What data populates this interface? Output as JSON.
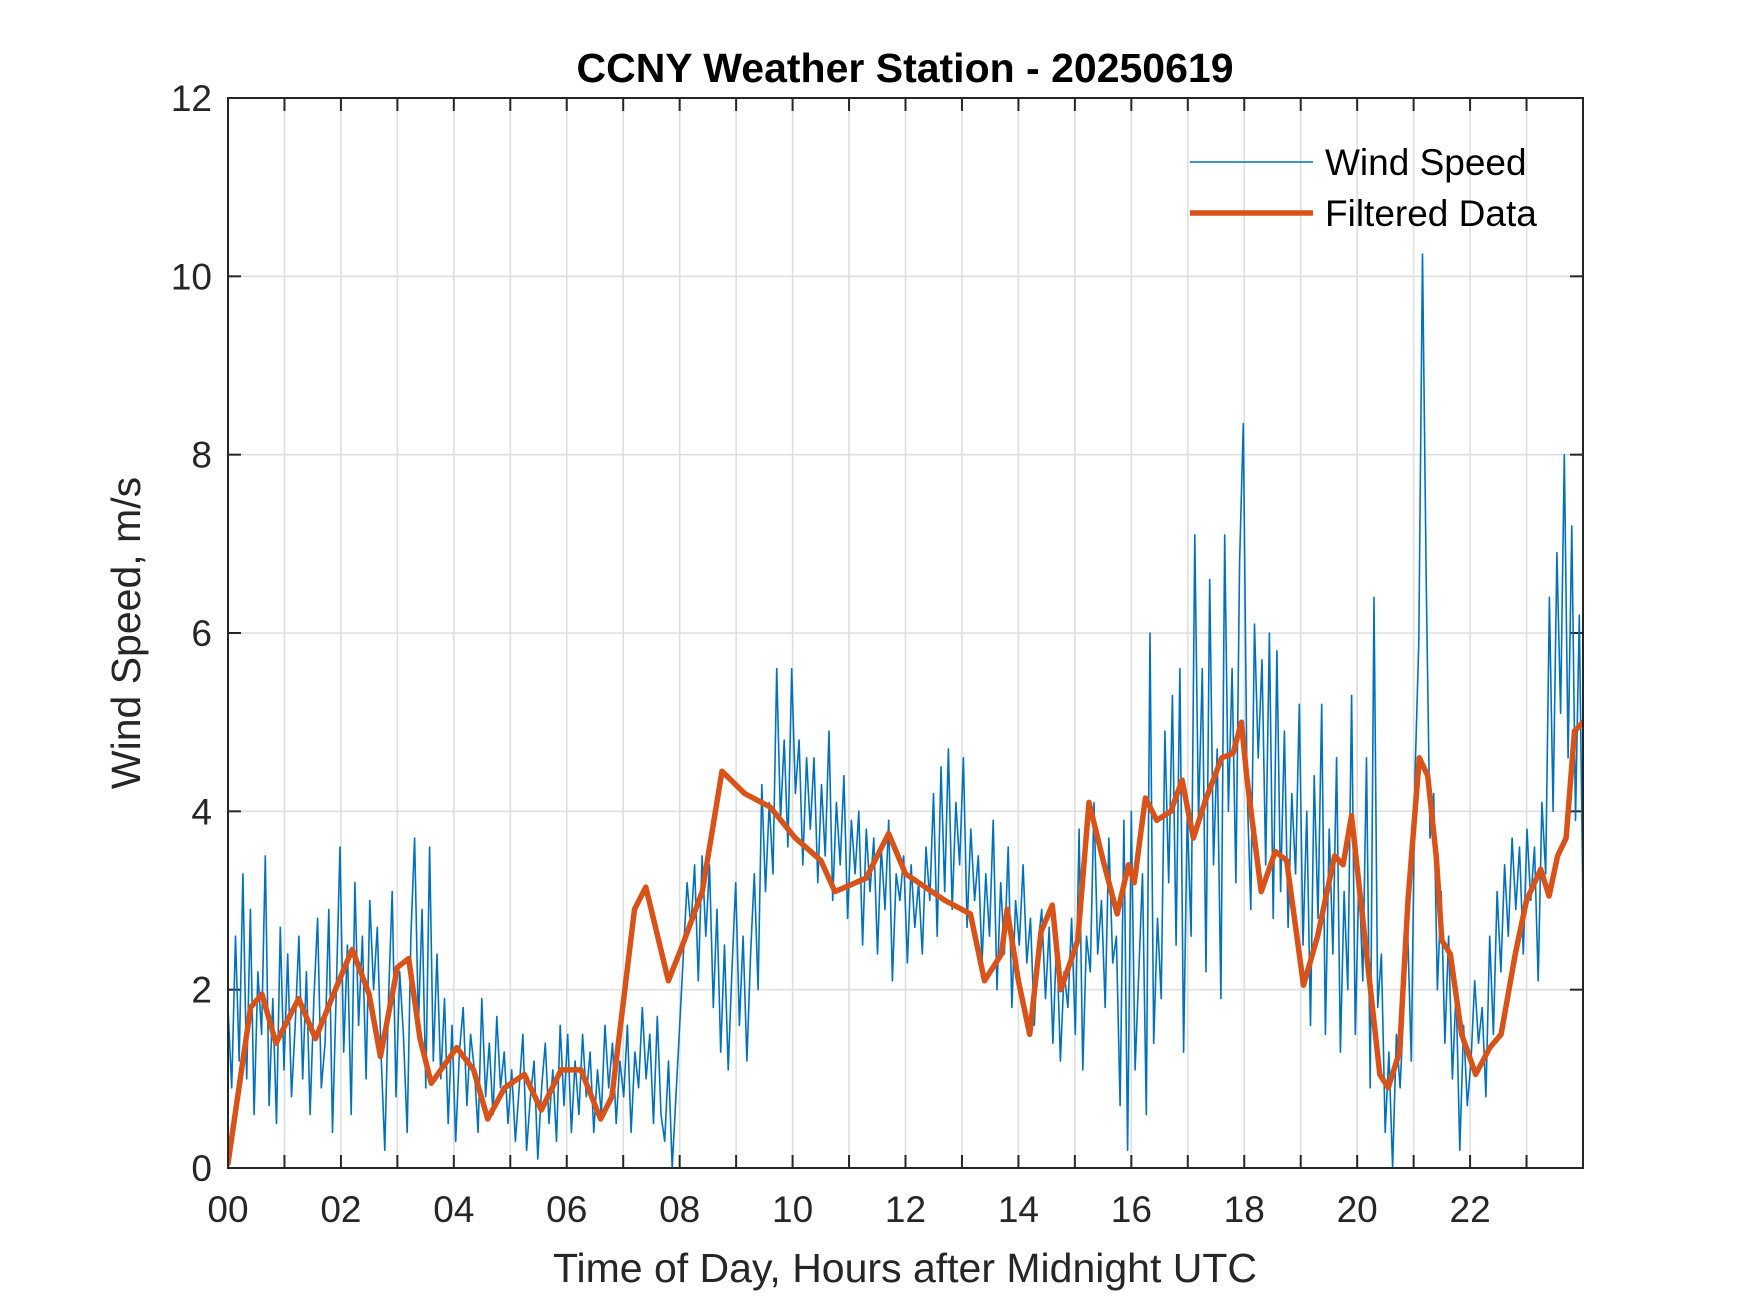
{
  "chart_data": {
    "type": "line",
    "title": "CCNY Weather Station - 20250619",
    "xlabel": "Time of Day, Hours after Midnight UTC",
    "ylabel": "Wind Speed, m/s",
    "xlim": [
      0,
      24
    ],
    "ylim": [
      0,
      12
    ],
    "grid": true,
    "legend_position": "top-right",
    "x_ticks": [
      0,
      2,
      4,
      6,
      8,
      10,
      12,
      14,
      16,
      18,
      20,
      22
    ],
    "x_tick_labels": [
      "00",
      "02",
      "04",
      "06",
      "08",
      "10",
      "12",
      "14",
      "16",
      "18",
      "20",
      "22"
    ],
    "x_minor_grid_step": 1,
    "y_ticks": [
      0,
      2,
      4,
      6,
      8,
      10,
      12
    ],
    "y_tick_labels": [
      "0",
      "2",
      "4",
      "6",
      "8",
      "10",
      "12"
    ],
    "series": [
      {
        "name": "Wind Speed",
        "color": "#0072BD",
        "style": "thin",
        "x_step_hours": 0.05,
        "values": [
          1.8,
          0.9,
          2.6,
          1.2,
          3.3,
          1.0,
          2.9,
          0.6,
          2.2,
          1.5,
          3.5,
          0.7,
          1.9,
          0.5,
          2.7,
          1.1,
          2.4,
          0.8,
          1.6,
          2.6,
          1.0,
          2.2,
          0.6,
          1.9,
          2.8,
          0.9,
          1.4,
          2.9,
          0.4,
          2.0,
          3.6,
          1.3,
          2.5,
          0.6,
          3.2,
          1.6,
          2.6,
          1.0,
          3.0,
          2.0,
          2.7,
          1.3,
          0.2,
          1.9,
          3.1,
          0.8,
          2.2,
          1.5,
          0.4,
          2.6,
          3.7,
          1.6,
          2.9,
          0.9,
          3.6,
          1.2,
          2.4,
          1.0,
          1.9,
          0.5,
          1.6,
          0.3,
          1.3,
          1.8,
          0.7,
          1.5,
          1.1,
          0.4,
          1.9,
          0.8,
          1.4,
          0.6,
          1.7,
          0.9,
          1.3,
          0.5,
          1.1,
          0.3,
          0.9,
          1.5,
          0.2,
          0.8,
          1.2,
          0.1,
          0.9,
          1.4,
          0.5,
          1.1,
          0.3,
          1.6,
          0.7,
          1.5,
          0.4,
          1.2,
          0.6,
          1.5,
          0.8,
          1.3,
          0.4,
          1.1,
          0.6,
          1.6,
          0.9,
          1.4,
          0.5,
          1.2,
          0.8,
          1.6,
          0.4,
          1.3,
          0.9,
          1.8,
          1.0,
          1.5,
          0.5,
          1.7,
          0.6,
          0.3,
          1.2,
          0.0,
          0.8,
          1.6,
          2.4,
          3.2,
          2.7,
          3.4,
          2.1,
          3.5,
          2.6,
          3.4,
          1.8,
          2.9,
          1.3,
          2.5,
          1.1,
          2.2,
          3.2,
          1.6,
          2.6,
          1.2,
          2.4,
          3.3,
          2.0,
          4.3,
          3.1,
          4.1,
          3.3,
          5.6,
          3.9,
          4.8,
          3.6,
          5.6,
          4.2,
          4.8,
          3.4,
          4.6,
          3.8,
          4.6,
          3.2,
          4.3,
          3.5,
          4.9,
          3.0,
          4.1,
          3.4,
          4.4,
          2.8,
          3.9,
          3.3,
          4.0,
          2.5,
          3.8,
          3.1,
          3.7,
          2.4,
          3.6,
          2.9,
          3.9,
          2.1,
          3.3,
          3.0,
          3.5,
          2.3,
          3.4,
          2.7,
          3.2,
          2.4,
          3.6,
          3.0,
          4.2,
          2.6,
          4.5,
          3.1,
          4.7,
          2.9,
          4.1,
          3.4,
          4.6,
          2.7,
          3.8,
          3.0,
          3.5,
          2.3,
          3.3,
          2.6,
          3.9,
          2.0,
          3.2,
          2.4,
          3.6,
          1.8,
          3.0,
          2.5,
          3.4,
          2.3,
          2.8,
          1.6,
          2.5,
          2.9,
          1.9,
          2.7,
          1.4,
          2.6,
          1.2,
          2.2,
          1.8,
          2.8,
          1.5,
          3.8,
          1.1,
          2.6,
          2.2,
          4.1,
          2.4,
          3.0,
          1.8,
          3.7,
          2.3,
          2.6,
          0.7,
          3.9,
          0.2,
          4.0,
          1.1,
          2.2,
          3.3,
          0.6,
          6.0,
          1.4,
          2.8,
          1.9,
          4.9,
          3.2,
          5.3,
          2.5,
          5.6,
          1.3,
          4.0,
          2.6,
          7.1,
          3.9,
          5.6,
          2.2,
          6.6,
          3.4,
          4.7,
          1.9,
          7.1,
          4.0,
          5.6,
          3.2,
          6.8,
          8.35,
          4.3,
          2.9,
          6.1,
          4.6,
          5.7,
          3.4,
          6.0,
          2.8,
          5.8,
          3.1,
          4.9,
          2.7,
          4.2,
          3.3,
          5.2,
          2.5,
          4.0,
          1.6,
          4.4,
          2.8,
          5.2,
          1.5,
          3.8,
          2.4,
          4.6,
          1.3,
          3.1,
          2.0,
          5.3,
          1.5,
          3.3,
          2.1,
          4.6,
          0.9,
          6.4,
          1.8,
          2.4,
          0.4,
          1.3,
          0.0,
          1.5,
          0.9,
          1.8,
          2.7,
          1.2,
          4.4,
          5.9,
          10.25,
          6.6,
          3.7,
          4.2,
          2.0,
          3.1,
          1.4,
          2.6,
          1.0,
          2.0,
          0.2,
          1.6,
          0.7,
          1.2,
          2.1,
          1.4,
          1.8,
          0.8,
          2.6,
          1.5,
          3.1,
          2.2,
          3.4,
          2.6,
          3.7,
          2.9,
          3.6,
          2.4,
          3.8,
          3.0,
          3.6,
          2.1,
          4.1,
          3.3,
          6.4,
          4.0,
          6.9,
          5.1,
          8.0,
          4.6,
          7.2,
          3.9,
          6.2,
          2.9
        ]
      },
      {
        "name": "Filtered Data",
        "color": "#D95319",
        "style": "thick",
        "points": [
          [
            0,
            0.05
          ],
          [
            0.4,
            1.8
          ],
          [
            0.6,
            1.95
          ],
          [
            0.85,
            1.4
          ],
          [
            1.25,
            1.9
          ],
          [
            1.55,
            1.45
          ],
          [
            1.9,
            2.0
          ],
          [
            2.2,
            2.45
          ],
          [
            2.5,
            1.95
          ],
          [
            2.7,
            1.25
          ],
          [
            3.0,
            2.25
          ],
          [
            3.2,
            2.35
          ],
          [
            3.4,
            1.45
          ],
          [
            3.6,
            0.95
          ],
          [
            4.05,
            1.35
          ],
          [
            4.35,
            1.1
          ],
          [
            4.6,
            0.55
          ],
          [
            4.9,
            0.9
          ],
          [
            5.25,
            1.05
          ],
          [
            5.55,
            0.65
          ],
          [
            5.9,
            1.1
          ],
          [
            6.25,
            1.1
          ],
          [
            6.6,
            0.55
          ],
          [
            6.8,
            0.8
          ],
          [
            7.2,
            2.9
          ],
          [
            7.4,
            3.15
          ],
          [
            7.8,
            2.1
          ],
          [
            8.05,
            2.5
          ],
          [
            8.4,
            3.1
          ],
          [
            8.75,
            4.45
          ],
          [
            9.15,
            4.2
          ],
          [
            9.6,
            4.05
          ],
          [
            10.05,
            3.7
          ],
          [
            10.5,
            3.45
          ],
          [
            10.75,
            3.1
          ],
          [
            11.3,
            3.25
          ],
          [
            11.7,
            3.75
          ],
          [
            12.0,
            3.3
          ],
          [
            12.7,
            3.0
          ],
          [
            13.15,
            2.85
          ],
          [
            13.4,
            2.1
          ],
          [
            13.7,
            2.4
          ],
          [
            13.8,
            2.9
          ],
          [
            14.0,
            2.1
          ],
          [
            14.2,
            1.5
          ],
          [
            14.4,
            2.65
          ],
          [
            14.6,
            2.95
          ],
          [
            14.75,
            2.0
          ],
          [
            15.05,
            2.55
          ],
          [
            15.25,
            4.1
          ],
          [
            15.5,
            3.45
          ],
          [
            15.75,
            2.85
          ],
          [
            15.95,
            3.4
          ],
          [
            16.05,
            3.2
          ],
          [
            16.25,
            4.15
          ],
          [
            16.45,
            3.9
          ],
          [
            16.7,
            4.0
          ],
          [
            16.9,
            4.35
          ],
          [
            17.1,
            3.7
          ],
          [
            17.3,
            4.1
          ],
          [
            17.6,
            4.6
          ],
          [
            17.8,
            4.65
          ],
          [
            17.95,
            5.0
          ],
          [
            18.05,
            4.35
          ],
          [
            18.3,
            3.1
          ],
          [
            18.55,
            3.55
          ],
          [
            18.75,
            3.45
          ],
          [
            19.05,
            2.05
          ],
          [
            19.3,
            2.6
          ],
          [
            19.6,
            3.5
          ],
          [
            19.75,
            3.4
          ],
          [
            19.9,
            3.95
          ],
          [
            20.15,
            2.5
          ],
          [
            20.4,
            1.05
          ],
          [
            20.55,
            0.9
          ],
          [
            20.75,
            1.3
          ],
          [
            20.9,
            3.0
          ],
          [
            21.1,
            4.6
          ],
          [
            21.25,
            4.4
          ],
          [
            21.4,
            3.5
          ],
          [
            21.5,
            2.55
          ],
          [
            21.65,
            2.4
          ],
          [
            21.85,
            1.5
          ],
          [
            22.1,
            1.05
          ],
          [
            22.35,
            1.35
          ],
          [
            22.55,
            1.5
          ],
          [
            22.8,
            2.4
          ],
          [
            23.0,
            3.0
          ],
          [
            23.25,
            3.35
          ],
          [
            23.4,
            3.05
          ],
          [
            23.55,
            3.5
          ],
          [
            23.7,
            3.7
          ],
          [
            23.85,
            4.9
          ],
          [
            24.0,
            5.0
          ]
        ]
      }
    ],
    "legend": [
      {
        "label": "Wind Speed",
        "color": "#0072BD"
      },
      {
        "label": "Filtered Data",
        "color": "#D95319"
      }
    ]
  }
}
